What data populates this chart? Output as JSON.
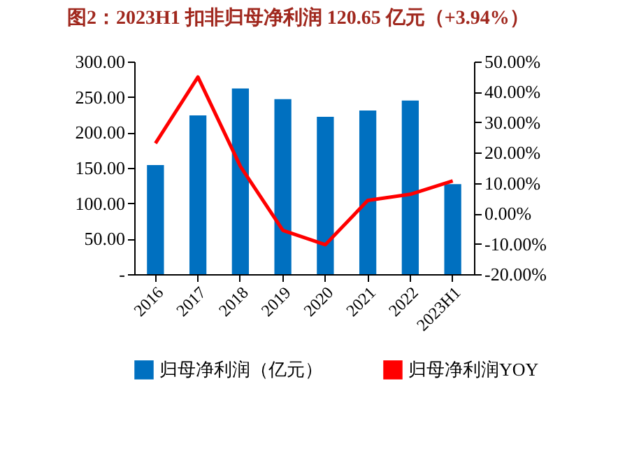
{
  "chart_data": {
    "type": "bar",
    "title": "图2：2023H1 扣非归母净利润 120.65 亿元（+3.94%）",
    "categories": [
      "2016",
      "2017",
      "2018",
      "2019",
      "2020",
      "2021",
      "2022",
      "2023H1"
    ],
    "series": [
      {
        "name": "归母净利润（亿元）",
        "color": "#0070c0",
        "values": [
          154,
          224,
          262,
          247,
          222,
          231,
          245,
          127
        ]
      },
      {
        "name": "归母净利润YOY",
        "type": "line",
        "axis": "y2",
        "color": "#ff0000",
        "values": [
          23.1,
          44.9,
          15.5,
          -5.6,
          -10.3,
          4.3,
          6.3,
          10.7
        ]
      }
    ],
    "ylim": [
      0,
      300
    ],
    "yticks": [
      {
        "value": 0,
        "label": "-"
      },
      {
        "value": 50,
        "label": "50.00"
      },
      {
        "value": 100,
        "label": "100.00"
      },
      {
        "value": 150,
        "label": "150.00"
      },
      {
        "value": 200,
        "label": "200.00"
      },
      {
        "value": 250,
        "label": "250.00"
      },
      {
        "value": 300,
        "label": "300.00"
      }
    ],
    "y2lim": [
      -20,
      50
    ],
    "y2ticks": [
      {
        "value": -20,
        "label": "-20.00%"
      },
      {
        "value": -10,
        "label": "-10.00%"
      },
      {
        "value": 0,
        "label": "0.00%"
      },
      {
        "value": 10,
        "label": "10.00%"
      },
      {
        "value": 20,
        "label": "20.00%"
      },
      {
        "value": 30,
        "label": "30.00%"
      },
      {
        "value": 40,
        "label": "40.00%"
      },
      {
        "value": 50,
        "label": "50.00%"
      }
    ],
    "legend": "bottom",
    "grid": false
  }
}
